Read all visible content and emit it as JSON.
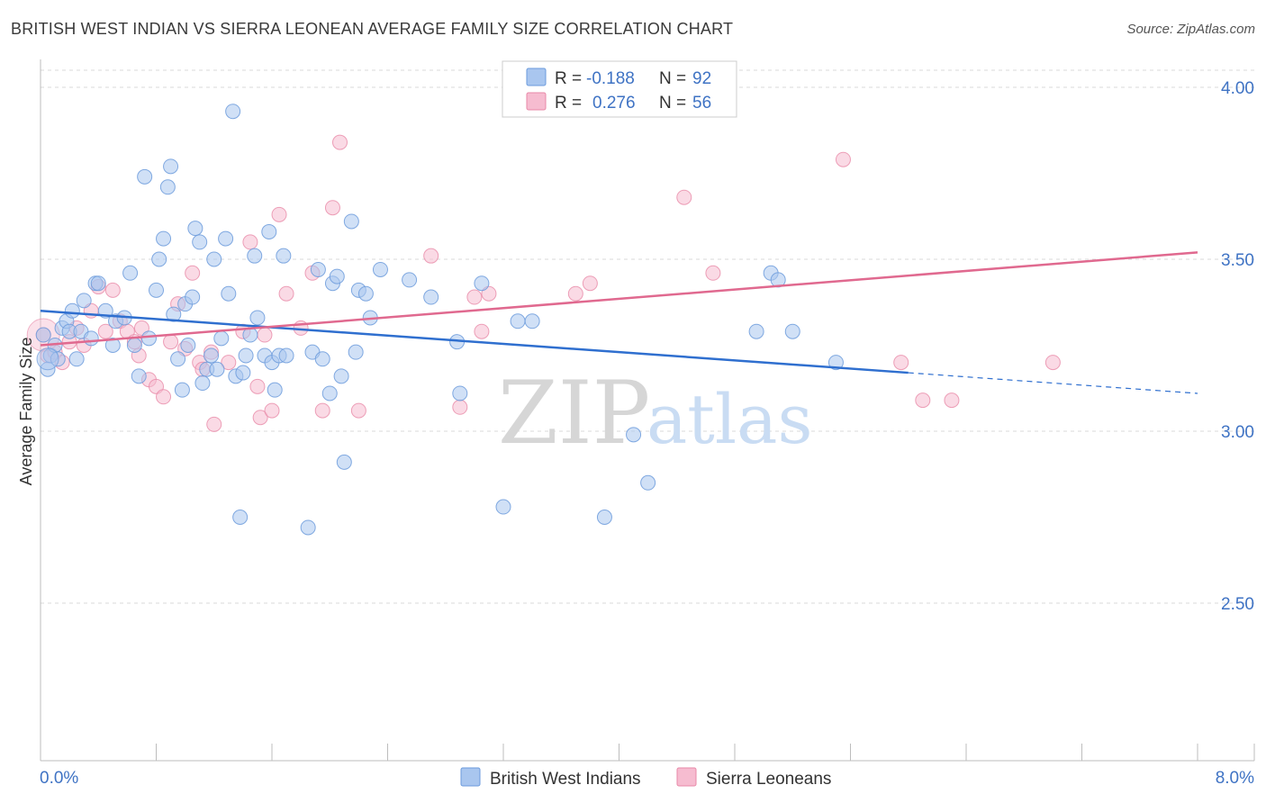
{
  "header": {
    "title": "BRITISH WEST INDIAN VS SIERRA LEONEAN AVERAGE FAMILY SIZE CORRELATION CHART",
    "source": "Source: ZipAtlas.com"
  },
  "watermark": {
    "zip": "ZIP",
    "atlas": "atlas"
  },
  "legend_top": {
    "rows": [
      {
        "r_label": "R =",
        "r_value": "-0.188",
        "n_label": "N =",
        "n_value": "92"
      },
      {
        "r_label": "R =",
        "r_value": "0.276",
        "n_label": "N =",
        "n_value": "56"
      }
    ]
  },
  "colors": {
    "blue_fill": "#a9c6ef",
    "blue_stroke": "#6c9bdc",
    "blue_line": "#2f6fcf",
    "pink_fill": "#f6bcd0",
    "pink_stroke": "#e889a8",
    "pink_line": "#e0698f",
    "tick_text": "#3f73c4",
    "grid": "#d9d9d9"
  },
  "chart_data": {
    "type": "scatter",
    "title": "BRITISH WEST INDIAN VS SIERRA LEONEAN AVERAGE FAMILY SIZE CORRELATION CHART",
    "xlabel": "",
    "ylabel": "Average Family Size",
    "xlim": [
      0,
      8.0
    ],
    "ylim": [
      2.0,
      4.07
    ],
    "x_tick_labels": [
      "0.0%",
      "8.0%"
    ],
    "y_ticks": [
      2.5,
      3.0,
      3.5,
      4.0
    ],
    "y_tick_labels": [
      "2.50",
      "3.00",
      "3.50",
      "4.00"
    ],
    "grid": "horizontal dashed",
    "legend_position": "top-center",
    "series": [
      {
        "name": "British West Indians",
        "r": -0.188,
        "n": 92,
        "trend": {
          "x0": 0.0,
          "y0": 3.35,
          "x1": 6.0,
          "y1": 3.17,
          "dashed_to_x": 8.0,
          "dashed_to_y": 3.11
        },
        "points": [
          [
            0.02,
            3.28
          ],
          [
            0.05,
            3.18
          ],
          [
            0.07,
            3.22
          ],
          [
            0.1,
            3.25
          ],
          [
            0.12,
            3.21
          ],
          [
            0.15,
            3.3
          ],
          [
            0.18,
            3.32
          ],
          [
            0.2,
            3.29
          ],
          [
            0.22,
            3.35
          ],
          [
            0.25,
            3.21
          ],
          [
            0.28,
            3.29
          ],
          [
            0.3,
            3.38
          ],
          [
            0.35,
            3.27
          ],
          [
            0.38,
            3.43
          ],
          [
            0.4,
            3.43
          ],
          [
            0.45,
            3.35
          ],
          [
            0.5,
            3.25
          ],
          [
            0.52,
            3.32
          ],
          [
            0.58,
            3.33
          ],
          [
            0.62,
            3.46
          ],
          [
            0.65,
            3.25
          ],
          [
            0.68,
            3.16
          ],
          [
            0.72,
            3.74
          ],
          [
            0.75,
            3.27
          ],
          [
            0.8,
            3.41
          ],
          [
            0.82,
            3.5
          ],
          [
            0.85,
            3.56
          ],
          [
            0.88,
            3.71
          ],
          [
            0.9,
            3.77
          ],
          [
            0.92,
            3.34
          ],
          [
            0.95,
            3.21
          ],
          [
            0.98,
            3.12
          ],
          [
            1.0,
            3.37
          ],
          [
            1.02,
            3.25
          ],
          [
            1.05,
            3.39
          ],
          [
            1.07,
            3.59
          ],
          [
            1.1,
            3.55
          ],
          [
            1.12,
            3.14
          ],
          [
            1.15,
            3.18
          ],
          [
            1.18,
            3.22
          ],
          [
            1.2,
            3.5
          ],
          [
            1.22,
            3.18
          ],
          [
            1.25,
            3.27
          ],
          [
            1.28,
            3.56
          ],
          [
            1.3,
            3.4
          ],
          [
            1.33,
            3.93
          ],
          [
            1.35,
            3.16
          ],
          [
            1.38,
            2.75
          ],
          [
            1.4,
            3.17
          ],
          [
            1.42,
            3.22
          ],
          [
            1.45,
            3.28
          ],
          [
            1.48,
            3.51
          ],
          [
            1.5,
            3.33
          ],
          [
            1.55,
            3.22
          ],
          [
            1.58,
            3.58
          ],
          [
            1.6,
            3.2
          ],
          [
            1.62,
            3.12
          ],
          [
            1.65,
            3.22
          ],
          [
            1.68,
            3.51
          ],
          [
            1.7,
            3.22
          ],
          [
            1.85,
            2.72
          ],
          [
            1.88,
            3.23
          ],
          [
            1.92,
            3.47
          ],
          [
            1.95,
            3.21
          ],
          [
            2.0,
            3.11
          ],
          [
            2.02,
            3.43
          ],
          [
            2.05,
            3.45
          ],
          [
            2.08,
            3.16
          ],
          [
            2.1,
            2.91
          ],
          [
            2.15,
            3.61
          ],
          [
            2.18,
            3.23
          ],
          [
            2.2,
            3.41
          ],
          [
            2.25,
            3.4
          ],
          [
            2.28,
            3.33
          ],
          [
            2.35,
            3.47
          ],
          [
            2.55,
            3.44
          ],
          [
            2.7,
            3.39
          ],
          [
            2.88,
            3.26
          ],
          [
            2.9,
            3.11
          ],
          [
            3.05,
            3.43
          ],
          [
            3.2,
            2.78
          ],
          [
            3.3,
            3.32
          ],
          [
            3.4,
            3.32
          ],
          [
            3.9,
            2.75
          ],
          [
            4.1,
            2.99
          ],
          [
            4.2,
            2.85
          ],
          [
            4.95,
            3.29
          ],
          [
            5.05,
            3.46
          ],
          [
            5.1,
            3.44
          ],
          [
            5.2,
            3.29
          ],
          [
            5.5,
            3.2
          ]
        ]
      },
      {
        "name": "Sierra Leoneans",
        "r": 0.276,
        "n": 56,
        "trend": {
          "x0": 0.0,
          "y0": 3.25,
          "x1": 8.0,
          "y1": 3.52
        },
        "points": [
          [
            0.02,
            3.28
          ],
          [
            0.05,
            3.22
          ],
          [
            0.1,
            3.23
          ],
          [
            0.15,
            3.2
          ],
          [
            0.2,
            3.26
          ],
          [
            0.25,
            3.3
          ],
          [
            0.3,
            3.25
          ],
          [
            0.35,
            3.35
          ],
          [
            0.4,
            3.42
          ],
          [
            0.45,
            3.29
          ],
          [
            0.5,
            3.41
          ],
          [
            0.55,
            3.32
          ],
          [
            0.6,
            3.29
          ],
          [
            0.65,
            3.26
          ],
          [
            0.68,
            3.22
          ],
          [
            0.7,
            3.3
          ],
          [
            0.75,
            3.15
          ],
          [
            0.8,
            3.13
          ],
          [
            0.85,
            3.1
          ],
          [
            0.9,
            3.26
          ],
          [
            0.95,
            3.37
          ],
          [
            1.0,
            3.24
          ],
          [
            1.05,
            3.46
          ],
          [
            1.1,
            3.2
          ],
          [
            1.12,
            3.18
          ],
          [
            1.18,
            3.23
          ],
          [
            1.2,
            3.02
          ],
          [
            1.3,
            3.2
          ],
          [
            1.4,
            3.29
          ],
          [
            1.45,
            3.55
          ],
          [
            1.5,
            3.13
          ],
          [
            1.52,
            3.04
          ],
          [
            1.55,
            3.28
          ],
          [
            1.6,
            3.06
          ],
          [
            1.65,
            3.63
          ],
          [
            1.7,
            3.4
          ],
          [
            1.8,
            3.3
          ],
          [
            1.88,
            3.46
          ],
          [
            1.95,
            3.06
          ],
          [
            2.02,
            3.65
          ],
          [
            2.07,
            3.84
          ],
          [
            2.2,
            3.06
          ],
          [
            2.7,
            3.51
          ],
          [
            2.9,
            3.07
          ],
          [
            3.0,
            3.39
          ],
          [
            3.05,
            3.29
          ],
          [
            3.1,
            3.4
          ],
          [
            3.7,
            3.4
          ],
          [
            3.8,
            3.43
          ],
          [
            4.45,
            3.68
          ],
          [
            4.65,
            3.46
          ],
          [
            5.55,
            3.79
          ],
          [
            5.95,
            3.2
          ],
          [
            6.1,
            3.09
          ],
          [
            6.3,
            3.09
          ],
          [
            7.0,
            3.2
          ]
        ]
      }
    ],
    "legend_bottom": [
      "British West Indians",
      "Sierra Leoneans"
    ]
  }
}
